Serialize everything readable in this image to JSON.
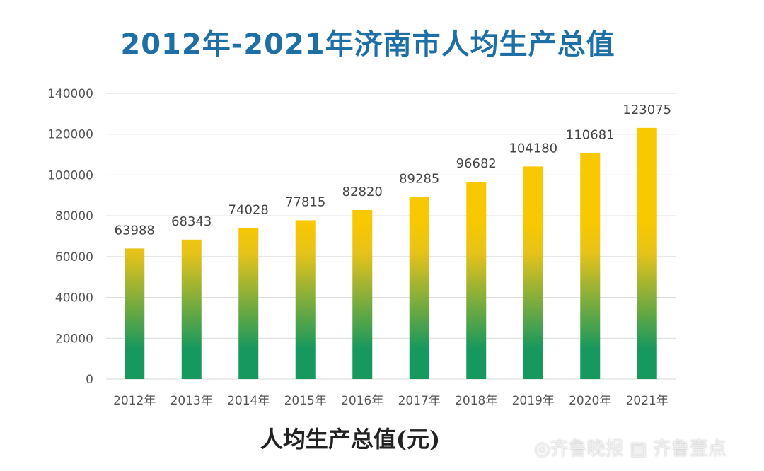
{
  "chart_data": {
    "type": "bar",
    "title": "2012年-2021年济南市人均生产总值",
    "xlabel": "人均生产总值(元)",
    "ylabel": "",
    "categories": [
      "2012年",
      "2013年",
      "2014年",
      "2015年",
      "2016年",
      "2017年",
      "2018年",
      "2019年",
      "2020年",
      "2021年"
    ],
    "values": [
      63988,
      68343,
      74028,
      77815,
      82820,
      89285,
      96682,
      104180,
      110681,
      123075
    ],
    "ylim": [
      0,
      140000
    ],
    "yticks": [
      0,
      20000,
      40000,
      60000,
      80000,
      100000,
      120000,
      140000
    ],
    "grid": true,
    "colors": {
      "top": "#f8c800",
      "bottom": "#17985e",
      "title": "#1d6fa5"
    }
  },
  "watermark": "◎齐鲁晚报 壹点 齐鲁壹点"
}
